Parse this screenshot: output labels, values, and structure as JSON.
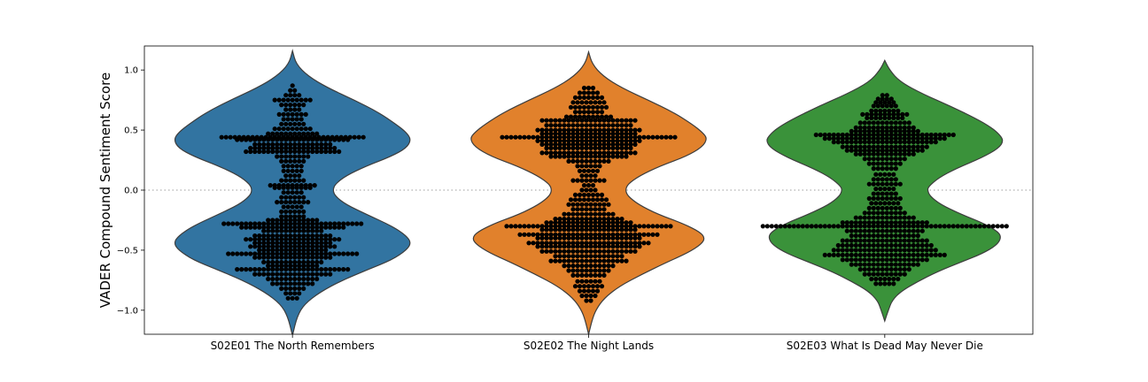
{
  "chart_data": {
    "type": "violin",
    "ylabel": "VADER Compound Sentiment Score",
    "ylim": [
      -1.2,
      1.2
    ],
    "yticks": [
      1.0,
      0.5,
      0.0,
      -0.5,
      -1.0
    ],
    "ytick_labels": [
      "1.0",
      "0.5",
      "0.0",
      "−0.5",
      "−1.0"
    ],
    "reference_line": 0.0,
    "grid": false,
    "categories": [
      "S02E01 The North Remembers",
      "S02E02 The Night Lands",
      "S02E03 What Is Dead May Never Die"
    ],
    "colors": [
      "#3274a1",
      "#e1812c",
      "#3a923a"
    ],
    "point_color": "#000000",
    "violins": [
      {
        "name": "S02E01 The North Remembers",
        "profile": [
          [
            1.16,
            0
          ],
          [
            1.05,
            0.03
          ],
          [
            0.95,
            0.13
          ],
          [
            0.85,
            0.3
          ],
          [
            0.75,
            0.52
          ],
          [
            0.65,
            0.72
          ],
          [
            0.55,
            0.87
          ],
          [
            0.48,
            0.96
          ],
          [
            0.42,
            1.0
          ],
          [
            0.35,
            0.96
          ],
          [
            0.28,
            0.83
          ],
          [
            0.2,
            0.62
          ],
          [
            0.12,
            0.45
          ],
          [
            0.05,
            0.36
          ],
          [
            0.0,
            0.34
          ],
          [
            -0.05,
            0.36
          ],
          [
            -0.12,
            0.45
          ],
          [
            -0.2,
            0.62
          ],
          [
            -0.3,
            0.84
          ],
          [
            -0.38,
            0.96
          ],
          [
            -0.44,
            1.0
          ],
          [
            -0.5,
            0.96
          ],
          [
            -0.58,
            0.84
          ],
          [
            -0.66,
            0.64
          ],
          [
            -0.75,
            0.42
          ],
          [
            -0.85,
            0.23
          ],
          [
            -0.95,
            0.1
          ],
          [
            -1.05,
            0.04
          ],
          [
            -1.21,
            0
          ]
        ],
        "points": [
          {
            "y": 0.87,
            "n": 1
          },
          {
            "y": 0.83,
            "n": 2
          },
          {
            "y": 0.79,
            "n": 4
          },
          {
            "y": 0.75,
            "n": 9
          },
          {
            "y": 0.71,
            "n": 6
          },
          {
            "y": 0.67,
            "n": 4
          },
          {
            "y": 0.63,
            "n": 7
          },
          {
            "y": 0.59,
            "n": 5
          },
          {
            "y": 0.55,
            "n": 6
          },
          {
            "y": 0.51,
            "n": 9
          },
          {
            "y": 0.47,
            "n": 12
          },
          {
            "y": 0.44,
            "n": 33
          },
          {
            "y": 0.42,
            "n": 26
          },
          {
            "y": 0.38,
            "n": 18
          },
          {
            "y": 0.35,
            "n": 20
          },
          {
            "y": 0.32,
            "n": 22
          },
          {
            "y": 0.28,
            "n": 8
          },
          {
            "y": 0.24,
            "n": 6
          },
          {
            "y": 0.2,
            "n": 5
          },
          {
            "y": 0.16,
            "n": 5
          },
          {
            "y": 0.12,
            "n": 4
          },
          {
            "y": 0.08,
            "n": 6
          },
          {
            "y": 0.04,
            "n": 11
          },
          {
            "y": 0.02,
            "n": 9
          },
          {
            "y": -0.02,
            "n": 5
          },
          {
            "y": -0.06,
            "n": 6
          },
          {
            "y": -0.1,
            "n": 8
          },
          {
            "y": -0.14,
            "n": 5
          },
          {
            "y": -0.18,
            "n": 6
          },
          {
            "y": -0.22,
            "n": 6
          },
          {
            "y": -0.25,
            "n": 12
          },
          {
            "y": -0.28,
            "n": 32
          },
          {
            "y": -0.31,
            "n": 24
          },
          {
            "y": -0.34,
            "n": 14
          },
          {
            "y": -0.38,
            "n": 18
          },
          {
            "y": -0.41,
            "n": 22
          },
          {
            "y": -0.44,
            "n": 18
          },
          {
            "y": -0.47,
            "n": 20
          },
          {
            "y": -0.5,
            "n": 16
          },
          {
            "y": -0.53,
            "n": 30
          },
          {
            "y": -0.56,
            "n": 18
          },
          {
            "y": -0.6,
            "n": 14
          },
          {
            "y": -0.63,
            "n": 12
          },
          {
            "y": -0.66,
            "n": 26
          },
          {
            "y": -0.7,
            "n": 18
          },
          {
            "y": -0.74,
            "n": 12
          },
          {
            "y": -0.78,
            "n": 10
          },
          {
            "y": -0.82,
            "n": 6
          },
          {
            "y": -0.86,
            "n": 4
          },
          {
            "y": -0.9,
            "n": 3
          }
        ]
      },
      {
        "name": "S02E02 The Night Lands",
        "profile": [
          [
            1.15,
            0
          ],
          [
            1.05,
            0.03
          ],
          [
            0.95,
            0.12
          ],
          [
            0.85,
            0.28
          ],
          [
            0.75,
            0.5
          ],
          [
            0.65,
            0.71
          ],
          [
            0.55,
            0.87
          ],
          [
            0.48,
            0.96
          ],
          [
            0.43,
            1.0
          ],
          [
            0.36,
            0.96
          ],
          [
            0.28,
            0.82
          ],
          [
            0.2,
            0.6
          ],
          [
            0.12,
            0.43
          ],
          [
            0.05,
            0.33
          ],
          [
            0.0,
            0.31
          ],
          [
            -0.05,
            0.33
          ],
          [
            -0.12,
            0.42
          ],
          [
            -0.2,
            0.58
          ],
          [
            -0.28,
            0.8
          ],
          [
            -0.35,
            0.94
          ],
          [
            -0.4,
            0.98
          ],
          [
            -0.45,
            0.95
          ],
          [
            -0.52,
            0.84
          ],
          [
            -0.6,
            0.66
          ],
          [
            -0.7,
            0.45
          ],
          [
            -0.8,
            0.26
          ],
          [
            -0.9,
            0.13
          ],
          [
            -1.0,
            0.06
          ],
          [
            -1.08,
            0.03
          ],
          [
            -1.2,
            0
          ]
        ],
        "points": [
          {
            "y": 0.85,
            "n": 3
          },
          {
            "y": 0.81,
            "n": 5
          },
          {
            "y": 0.77,
            "n": 7
          },
          {
            "y": 0.73,
            "n": 8
          },
          {
            "y": 0.69,
            "n": 9
          },
          {
            "y": 0.65,
            "n": 7
          },
          {
            "y": 0.61,
            "n": 11
          },
          {
            "y": 0.58,
            "n": 22
          },
          {
            "y": 0.54,
            "n": 20
          },
          {
            "y": 0.5,
            "n": 24
          },
          {
            "y": 0.47,
            "n": 22
          },
          {
            "y": 0.44,
            "n": 40
          },
          {
            "y": 0.41,
            "n": 24
          },
          {
            "y": 0.38,
            "n": 22
          },
          {
            "y": 0.35,
            "n": 20
          },
          {
            "y": 0.31,
            "n": 22
          },
          {
            "y": 0.28,
            "n": 18
          },
          {
            "y": 0.24,
            "n": 10
          },
          {
            "y": 0.2,
            "n": 6
          },
          {
            "y": 0.16,
            "n": 5
          },
          {
            "y": 0.12,
            "n": 4
          },
          {
            "y": 0.08,
            "n": 8
          },
          {
            "y": 0.04,
            "n": 3
          },
          {
            "y": 0.0,
            "n": 4
          },
          {
            "y": -0.04,
            "n": 7
          },
          {
            "y": -0.08,
            "n": 9
          },
          {
            "y": -0.12,
            "n": 10
          },
          {
            "y": -0.16,
            "n": 8
          },
          {
            "y": -0.2,
            "n": 12
          },
          {
            "y": -0.24,
            "n": 16
          },
          {
            "y": -0.27,
            "n": 20
          },
          {
            "y": -0.3,
            "n": 38
          },
          {
            "y": -0.33,
            "n": 22
          },
          {
            "y": -0.37,
            "n": 32
          },
          {
            "y": -0.4,
            "n": 24
          },
          {
            "y": -0.44,
            "n": 28
          },
          {
            "y": -0.47,
            "n": 24
          },
          {
            "y": -0.51,
            "n": 22
          },
          {
            "y": -0.55,
            "n": 16
          },
          {
            "y": -0.59,
            "n": 18
          },
          {
            "y": -0.63,
            "n": 12
          },
          {
            "y": -0.67,
            "n": 10
          },
          {
            "y": -0.71,
            "n": 8
          },
          {
            "y": -0.76,
            "n": 6
          },
          {
            "y": -0.8,
            "n": 7
          },
          {
            "y": -0.84,
            "n": 5
          },
          {
            "y": -0.88,
            "n": 4
          },
          {
            "y": -0.92,
            "n": 2
          }
        ]
      },
      {
        "name": "S02E03 What Is Dead May Never Die",
        "profile": [
          [
            1.08,
            0
          ],
          [
            1.0,
            0.04
          ],
          [
            0.9,
            0.13
          ],
          [
            0.8,
            0.32
          ],
          [
            0.7,
            0.55
          ],
          [
            0.6,
            0.76
          ],
          [
            0.52,
            0.9
          ],
          [
            0.46,
            0.97
          ],
          [
            0.41,
            1.0
          ],
          [
            0.35,
            0.96
          ],
          [
            0.27,
            0.82
          ],
          [
            0.18,
            0.6
          ],
          [
            0.1,
            0.45
          ],
          [
            0.03,
            0.37
          ],
          [
            0.0,
            0.36
          ],
          [
            -0.05,
            0.38
          ],
          [
            -0.12,
            0.47
          ],
          [
            -0.2,
            0.64
          ],
          [
            -0.28,
            0.84
          ],
          [
            -0.35,
            0.96
          ],
          [
            -0.4,
            0.98
          ],
          [
            -0.46,
            0.94
          ],
          [
            -0.53,
            0.82
          ],
          [
            -0.6,
            0.64
          ],
          [
            -0.68,
            0.44
          ],
          [
            -0.76,
            0.28
          ],
          [
            -0.84,
            0.14
          ],
          [
            -0.92,
            0.06
          ],
          [
            -1.0,
            0.03
          ],
          [
            -1.09,
            0
          ]
        ],
        "points": [
          {
            "y": 0.79,
            "n": 2
          },
          {
            "y": 0.76,
            "n": 4
          },
          {
            "y": 0.73,
            "n": 5
          },
          {
            "y": 0.7,
            "n": 6
          },
          {
            "y": 0.66,
            "n": 7
          },
          {
            "y": 0.63,
            "n": 11
          },
          {
            "y": 0.6,
            "n": 9
          },
          {
            "y": 0.56,
            "n": 12
          },
          {
            "y": 0.52,
            "n": 14
          },
          {
            "y": 0.49,
            "n": 16
          },
          {
            "y": 0.46,
            "n": 32
          },
          {
            "y": 0.43,
            "n": 28
          },
          {
            "y": 0.4,
            "n": 24
          },
          {
            "y": 0.36,
            "n": 20
          },
          {
            "y": 0.33,
            "n": 18
          },
          {
            "y": 0.3,
            "n": 14
          },
          {
            "y": 0.26,
            "n": 10
          },
          {
            "y": 0.22,
            "n": 8
          },
          {
            "y": 0.18,
            "n": 6
          },
          {
            "y": 0.13,
            "n": 5
          },
          {
            "y": 0.09,
            "n": 6
          },
          {
            "y": 0.05,
            "n": 8
          },
          {
            "y": 0.01,
            "n": 5
          },
          {
            "y": -0.03,
            "n": 6
          },
          {
            "y": -0.07,
            "n": 8
          },
          {
            "y": -0.11,
            "n": 7
          },
          {
            "y": -0.15,
            "n": 8
          },
          {
            "y": -0.19,
            "n": 10
          },
          {
            "y": -0.23,
            "n": 14
          },
          {
            "y": -0.27,
            "n": 20
          },
          {
            "y": -0.3,
            "n": 56
          },
          {
            "y": -0.34,
            "n": 18
          },
          {
            "y": -0.38,
            "n": 16
          },
          {
            "y": -0.42,
            "n": 20
          },
          {
            "y": -0.46,
            "n": 22
          },
          {
            "y": -0.5,
            "n": 24
          },
          {
            "y": -0.54,
            "n": 28
          },
          {
            "y": -0.58,
            "n": 20
          },
          {
            "y": -0.62,
            "n": 16
          },
          {
            "y": -0.66,
            "n": 12
          },
          {
            "y": -0.7,
            "n": 10
          },
          {
            "y": -0.74,
            "n": 7
          },
          {
            "y": -0.78,
            "n": 5
          }
        ]
      }
    ]
  }
}
